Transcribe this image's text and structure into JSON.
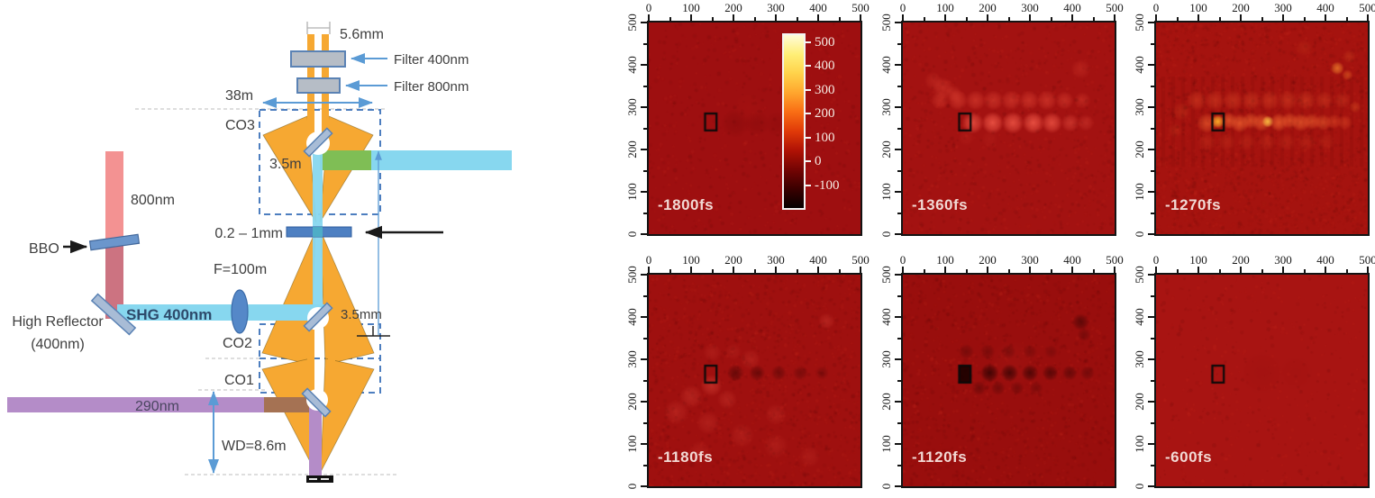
{
  "diagram": {
    "labels": {
      "aperture": "5.6mm",
      "filter400": "Filter 400nm",
      "filter800": "Filter 800nm",
      "distance38": "38m",
      "co3": "CO3",
      "co3_secondary": "3.5m",
      "sample_thickness": "0.2 – 1mm",
      "lens_focal": "F=100m",
      "shg_beam": "SHG 400nm",
      "pump_beam": "800nm",
      "bbo": "BBO",
      "high_reflector_line1": "High Reflector",
      "high_reflector_line2": "(400nm)",
      "co2": "CO2",
      "co1": "CO1",
      "co2_secondary": "3.5mm",
      "uv_beam": "290nm",
      "working_distance": "WD=8.6m"
    },
    "colors": {
      "beam_800nm": "#f39292",
      "beam_400nm": "#87d7ef",
      "beam_290nm": "#b48cc8",
      "overlap_green": "#7fbe55",
      "objective_orange": "#f6a832",
      "arrow_blue": "#5b9bd5",
      "optic_blue": "#6b96cc"
    }
  },
  "chart_data": {
    "type": "heatmap",
    "title": "",
    "xlabel": "",
    "ylabel": "",
    "x_range": [
      0,
      500
    ],
    "y_range": [
      0,
      500
    ],
    "x_ticks": [
      0,
      100,
      200,
      300,
      400,
      500
    ],
    "y_ticks": [
      0,
      100,
      200,
      300,
      400,
      500
    ],
    "minor_tick_step": 50,
    "x_axis_side": "top",
    "grid": false,
    "colorbar": {
      "ticks": [
        500,
        400,
        300,
        200,
        100,
        0,
        -100
      ],
      "gradient_top_to_bottom": [
        "#fffbd8",
        "#ffef77",
        "#ffd24a",
        "#ffa62e",
        "#f96d14",
        "#e03a08",
        "#b01205",
        "#740403",
        "#3a0000",
        "#060000"
      ]
    },
    "roi_marker": {
      "x": 133,
      "y": 245,
      "w": 27,
      "h": 40
    },
    "panels": [
      {
        "label": "-1800fs",
        "bg": "#9e0f10",
        "noise": 0.5,
        "stripes": false,
        "marker": {
          "x": 133,
          "y": 245,
          "w": 27,
          "h": 40,
          "filled": false
        },
        "spots": [
          {
            "x": 205,
            "y": 262,
            "r": 34,
            "c": "#700606",
            "a": 0.28
          },
          {
            "x": 255,
            "y": 262,
            "r": 30,
            "c": "#700606",
            "a": 0.22
          },
          {
            "x": 305,
            "y": 260,
            "r": 30,
            "c": "#700606",
            "a": 0.18
          },
          {
            "x": 355,
            "y": 260,
            "r": 28,
            "c": "#700606",
            "a": 0.13
          },
          {
            "x": 235,
            "y": 300,
            "r": 38,
            "c": "#b81d15",
            "a": 0.15
          }
        ]
      },
      {
        "label": "-1360fs",
        "bg": "#a31211",
        "noise": 0.8,
        "stripes": false,
        "marker": {
          "x": 133,
          "y": 245,
          "w": 27,
          "h": 40,
          "filled": false
        },
        "spots": [
          {
            "x": 165,
            "y": 263,
            "r": 26,
            "c": "#f25848",
            "a": 0.75
          },
          {
            "x": 212,
            "y": 263,
            "r": 26,
            "c": "#f25848",
            "a": 0.85
          },
          {
            "x": 260,
            "y": 263,
            "r": 26,
            "c": "#f25848",
            "a": 0.8
          },
          {
            "x": 308,
            "y": 263,
            "r": 26,
            "c": "#f25848",
            "a": 0.85
          },
          {
            "x": 352,
            "y": 263,
            "r": 25,
            "c": "#f25848",
            "a": 0.75
          },
          {
            "x": 395,
            "y": 263,
            "r": 22,
            "c": "#f25848",
            "a": 0.45
          },
          {
            "x": 432,
            "y": 263,
            "r": 20,
            "c": "#f25848",
            "a": 0.3
          },
          {
            "x": 88,
            "y": 316,
            "r": 22,
            "c": "#e84a38",
            "a": 0.4
          },
          {
            "x": 130,
            "y": 316,
            "r": 24,
            "c": "#e84a38",
            "a": 0.5
          },
          {
            "x": 172,
            "y": 316,
            "r": 24,
            "c": "#e84a38",
            "a": 0.5
          },
          {
            "x": 214,
            "y": 316,
            "r": 24,
            "c": "#e84a38",
            "a": 0.5
          },
          {
            "x": 256,
            "y": 316,
            "r": 24,
            "c": "#e84a38",
            "a": 0.5
          },
          {
            "x": 298,
            "y": 316,
            "r": 24,
            "c": "#e84a38",
            "a": 0.5
          },
          {
            "x": 340,
            "y": 316,
            "r": 24,
            "c": "#e84a38",
            "a": 0.5
          },
          {
            "x": 382,
            "y": 316,
            "r": 22,
            "c": "#e84a38",
            "a": 0.45
          },
          {
            "x": 424,
            "y": 316,
            "r": 20,
            "c": "#e84a38",
            "a": 0.35
          },
          {
            "x": 95,
            "y": 345,
            "r": 26,
            "c": "#e04434",
            "a": 0.45
          },
          {
            "x": 72,
            "y": 362,
            "r": 22,
            "c": "#e04434",
            "a": 0.3
          },
          {
            "x": 120,
            "y": 332,
            "r": 20,
            "c": "#e04434",
            "a": 0.4
          },
          {
            "x": 150,
            "y": 228,
            "r": 20,
            "c": "#e04434",
            "a": 0.15
          },
          {
            "x": 205,
            "y": 225,
            "r": 20,
            "c": "#e04434",
            "a": 0.13
          },
          {
            "x": 420,
            "y": 390,
            "r": 24,
            "c": "#e04434",
            "a": 0.3
          }
        ]
      },
      {
        "label": "-1270fs",
        "bg": "#a5130f",
        "noise": 1.5,
        "stripes": true,
        "marker": {
          "x": 133,
          "y": 245,
          "w": 27,
          "h": 40,
          "filled": false
        },
        "spots": [
          {
            "x": 120,
            "y": 262,
            "r": 24,
            "c": "#f26430",
            "a": 0.6
          },
          {
            "x": 146,
            "y": 266,
            "r": 16,
            "c": "#ffb42a",
            "a": 0.95
          },
          {
            "x": 172,
            "y": 268,
            "r": 20,
            "c": "#f26430",
            "a": 0.7
          },
          {
            "x": 198,
            "y": 262,
            "r": 22,
            "c": "#f26430",
            "a": 0.75
          },
          {
            "x": 224,
            "y": 268,
            "r": 20,
            "c": "#f26430",
            "a": 0.65
          },
          {
            "x": 250,
            "y": 264,
            "r": 22,
            "c": "#f26430",
            "a": 0.7
          },
          {
            "x": 264,
            "y": 266,
            "r": 14,
            "c": "#ffc845",
            "a": 0.9
          },
          {
            "x": 290,
            "y": 264,
            "r": 22,
            "c": "#f26430",
            "a": 0.75
          },
          {
            "x": 316,
            "y": 268,
            "r": 20,
            "c": "#f26430",
            "a": 0.65
          },
          {
            "x": 342,
            "y": 264,
            "r": 22,
            "c": "#f26430",
            "a": 0.68
          },
          {
            "x": 368,
            "y": 266,
            "r": 20,
            "c": "#f26430",
            "a": 0.6
          },
          {
            "x": 394,
            "y": 264,
            "r": 20,
            "c": "#f26430",
            "a": 0.55
          },
          {
            "x": 420,
            "y": 266,
            "r": 18,
            "c": "#e8512a",
            "a": 0.5
          },
          {
            "x": 446,
            "y": 264,
            "r": 18,
            "c": "#e8512a",
            "a": 0.45
          },
          {
            "x": 96,
            "y": 316,
            "r": 24,
            "c": "#e04a28",
            "a": 0.45
          },
          {
            "x": 139,
            "y": 316,
            "r": 24,
            "c": "#e04a28",
            "a": 0.45
          },
          {
            "x": 182,
            "y": 316,
            "r": 24,
            "c": "#e04a28",
            "a": 0.45
          },
          {
            "x": 225,
            "y": 316,
            "r": 24,
            "c": "#e04a28",
            "a": 0.45
          },
          {
            "x": 268,
            "y": 316,
            "r": 24,
            "c": "#e04a28",
            "a": 0.45
          },
          {
            "x": 311,
            "y": 316,
            "r": 24,
            "c": "#e04a28",
            "a": 0.45
          },
          {
            "x": 354,
            "y": 316,
            "r": 24,
            "c": "#e04a28",
            "a": 0.45
          },
          {
            "x": 397,
            "y": 316,
            "r": 22,
            "c": "#e04a28",
            "a": 0.4
          },
          {
            "x": 440,
            "y": 316,
            "r": 20,
            "c": "#e04a28",
            "a": 0.35
          },
          {
            "x": 120,
            "y": 218,
            "r": 22,
            "c": "#d43f22",
            "a": 0.3
          },
          {
            "x": 167,
            "y": 218,
            "r": 22,
            "c": "#d43f22",
            "a": 0.3
          },
          {
            "x": 214,
            "y": 218,
            "r": 22,
            "c": "#d43f22",
            "a": 0.3
          },
          {
            "x": 261,
            "y": 218,
            "r": 22,
            "c": "#d43f22",
            "a": 0.3
          },
          {
            "x": 308,
            "y": 218,
            "r": 22,
            "c": "#d43f22",
            "a": 0.3
          },
          {
            "x": 355,
            "y": 218,
            "r": 22,
            "c": "#d43f22",
            "a": 0.28
          },
          {
            "x": 402,
            "y": 218,
            "r": 20,
            "c": "#d43f22",
            "a": 0.25
          },
          {
            "x": 428,
            "y": 392,
            "r": 16,
            "c": "#ff9631",
            "a": 0.65
          },
          {
            "x": 452,
            "y": 376,
            "r": 13,
            "c": "#f07028",
            "a": 0.5
          },
          {
            "x": 470,
            "y": 300,
            "r": 14,
            "c": "#e85c26",
            "a": 0.4
          },
          {
            "x": 456,
            "y": 420,
            "r": 16,
            "c": "#d84c22",
            "a": 0.35
          },
          {
            "x": 60,
            "y": 290,
            "r": 22,
            "c": "#d84c22",
            "a": 0.28
          },
          {
            "x": 45,
            "y": 245,
            "r": 18,
            "c": "#d84c22",
            "a": 0.22
          },
          {
            "x": 350,
            "y": 440,
            "r": 20,
            "c": "#d84c22",
            "a": 0.2
          }
        ]
      },
      {
        "label": "-1180fs",
        "bg": "#9f100f",
        "noise": 1.1,
        "stripes": false,
        "marker": {
          "x": 133,
          "y": 245,
          "w": 27,
          "h": 40,
          "filled": false
        },
        "spots": [
          {
            "x": 205,
            "y": 268,
            "r": 20,
            "c": "#320202",
            "a": 0.5
          },
          {
            "x": 256,
            "y": 268,
            "r": 19,
            "c": "#320202",
            "a": 0.45
          },
          {
            "x": 307,
            "y": 268,
            "r": 18,
            "c": "#320202",
            "a": 0.4
          },
          {
            "x": 358,
            "y": 268,
            "r": 18,
            "c": "#320202",
            "a": 0.33
          },
          {
            "x": 409,
            "y": 268,
            "r": 16,
            "c": "#320202",
            "a": 0.27
          },
          {
            "x": 148,
            "y": 238,
            "r": 26,
            "c": "#e24c3e",
            "a": 0.45
          },
          {
            "x": 100,
            "y": 212,
            "r": 28,
            "c": "#e24c3e",
            "a": 0.32
          },
          {
            "x": 185,
            "y": 205,
            "r": 24,
            "c": "#e24c3e",
            "a": 0.28
          },
          {
            "x": 65,
            "y": 175,
            "r": 30,
            "c": "#e24c3e",
            "a": 0.28
          },
          {
            "x": 140,
            "y": 150,
            "r": 28,
            "c": "#e24c3e",
            "a": 0.25
          },
          {
            "x": 220,
            "y": 120,
            "r": 30,
            "c": "#e24c3e",
            "a": 0.22
          },
          {
            "x": 300,
            "y": 95,
            "r": 30,
            "c": "#e24c3e",
            "a": 0.2
          },
          {
            "x": 120,
            "y": 80,
            "r": 28,
            "c": "#e24c3e",
            "a": 0.2
          },
          {
            "x": 240,
            "y": 300,
            "r": 24,
            "c": "#e24c3e",
            "a": 0.25
          },
          {
            "x": 300,
            "y": 170,
            "r": 26,
            "c": "#e24c3e",
            "a": 0.22
          },
          {
            "x": 420,
            "y": 390,
            "r": 20,
            "c": "#e24c3e",
            "a": 0.32
          },
          {
            "x": 380,
            "y": 70,
            "r": 26,
            "c": "#e24c3e",
            "a": 0.18
          },
          {
            "x": 150,
            "y": 316,
            "r": 22,
            "c": "#e24c3e",
            "a": 0.2
          },
          {
            "x": 200,
            "y": 318,
            "r": 20,
            "c": "#e24c3e",
            "a": 0.17
          }
        ]
      },
      {
        "label": "-1120fs",
        "bg": "#990e0d",
        "noise": 1.0,
        "stripes": false,
        "marker": {
          "x": 133,
          "y": 245,
          "w": 27,
          "h": 40,
          "filled": true
        },
        "spots": [
          {
            "x": 260,
            "y": 292,
            "r": 60,
            "c": "#c83428",
            "a": 0.1
          },
          {
            "x": 205,
            "y": 268,
            "r": 22,
            "c": "#180000",
            "a": 0.68
          },
          {
            "x": 252,
            "y": 268,
            "r": 21,
            "c": "#180000",
            "a": 0.62
          },
          {
            "x": 300,
            "y": 268,
            "r": 20,
            "c": "#180000",
            "a": 0.56
          },
          {
            "x": 348,
            "y": 268,
            "r": 19,
            "c": "#180000",
            "a": 0.48
          },
          {
            "x": 394,
            "y": 268,
            "r": 18,
            "c": "#180000",
            "a": 0.38
          },
          {
            "x": 436,
            "y": 268,
            "r": 17,
            "c": "#180000",
            "a": 0.28
          },
          {
            "x": 180,
            "y": 232,
            "r": 17,
            "c": "#180000",
            "a": 0.3
          },
          {
            "x": 225,
            "y": 232,
            "r": 17,
            "c": "#180000",
            "a": 0.28
          },
          {
            "x": 270,
            "y": 232,
            "r": 16,
            "c": "#180000",
            "a": 0.26
          },
          {
            "x": 315,
            "y": 232,
            "r": 16,
            "c": "#180000",
            "a": 0.22
          },
          {
            "x": 150,
            "y": 318,
            "r": 18,
            "c": "#180000",
            "a": 0.26
          },
          {
            "x": 200,
            "y": 318,
            "r": 18,
            "c": "#180000",
            "a": 0.24
          },
          {
            "x": 250,
            "y": 318,
            "r": 17,
            "c": "#180000",
            "a": 0.22
          },
          {
            "x": 300,
            "y": 318,
            "r": 17,
            "c": "#180000",
            "a": 0.2
          },
          {
            "x": 350,
            "y": 318,
            "r": 16,
            "c": "#180000",
            "a": 0.18
          },
          {
            "x": 420,
            "y": 388,
            "r": 20,
            "c": "#180000",
            "a": 0.45
          },
          {
            "x": 428,
            "y": 358,
            "r": 16,
            "c": "#180000",
            "a": 0.25
          }
        ]
      },
      {
        "label": "-600fs",
        "bg": "#a81412",
        "noise": 0.4,
        "stripes": false,
        "marker": {
          "x": 133,
          "y": 245,
          "w": 27,
          "h": 40,
          "filled": false
        },
        "spots": [
          {
            "x": 250,
            "y": 268,
            "r": 50,
            "c": "#8c0b0b",
            "a": 0.15
          },
          {
            "x": 330,
            "y": 268,
            "r": 40,
            "c": "#8c0b0b",
            "a": 0.1
          }
        ]
      }
    ]
  }
}
